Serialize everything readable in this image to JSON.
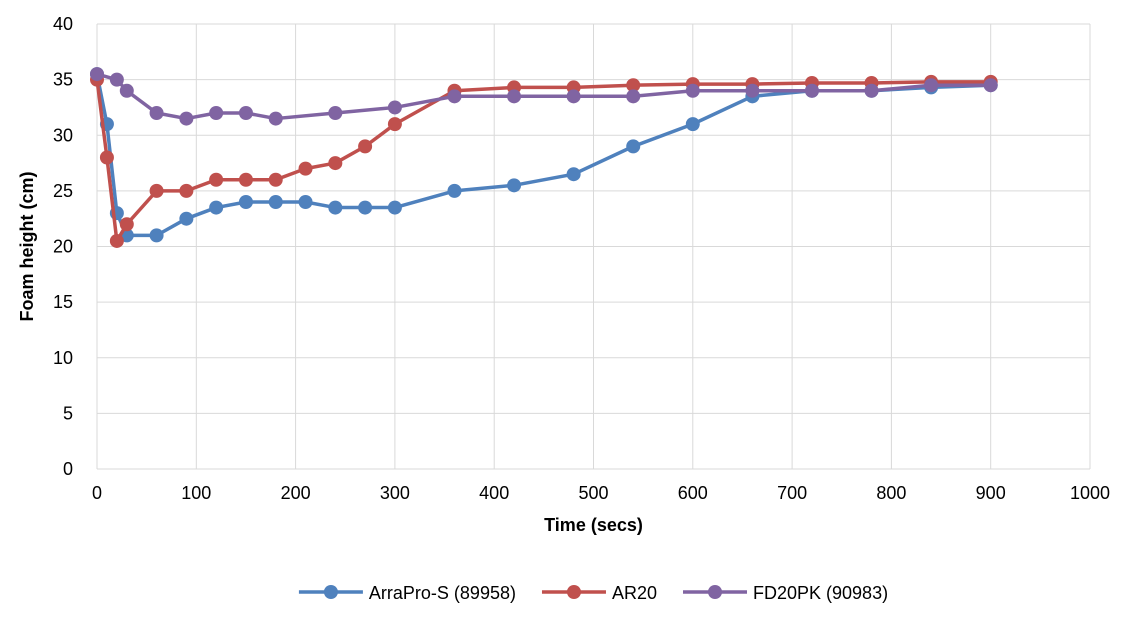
{
  "chart_data": {
    "type": "line",
    "title": "",
    "xlabel": "Time (secs)",
    "ylabel": "Foam height (cm)",
    "xlim": [
      0,
      1000
    ],
    "ylim": [
      0,
      40
    ],
    "x_ticks": [
      0,
      100,
      200,
      300,
      400,
      500,
      600,
      700,
      800,
      900,
      1000
    ],
    "y_ticks": [
      0,
      5,
      10,
      15,
      20,
      25,
      30,
      35,
      40
    ],
    "grid": true,
    "legend_position": "bottom",
    "series": [
      {
        "name": "ArraPro-S (89958)",
        "color": "#4f81bd",
        "x": [
          0,
          10,
          20,
          30,
          60,
          90,
          120,
          150,
          180,
          210,
          240,
          270,
          300,
          360,
          420,
          480,
          540,
          600,
          660,
          720,
          780,
          840,
          900
        ],
        "y": [
          35.5,
          31,
          23,
          21,
          21,
          22.5,
          23.5,
          24,
          24,
          24,
          23.5,
          23.5,
          23.5,
          25,
          25.5,
          26.5,
          29,
          31,
          33.5,
          34,
          34,
          34.3,
          34.5
        ]
      },
      {
        "name": "AR20",
        "color": "#c0504d",
        "x": [
          0,
          10,
          20,
          30,
          60,
          90,
          120,
          150,
          180,
          210,
          240,
          270,
          300,
          360,
          420,
          480,
          540,
          600,
          660,
          720,
          780,
          840,
          900
        ],
        "y": [
          35,
          28,
          20.5,
          22,
          25,
          25,
          26,
          26,
          26,
          27,
          27.5,
          29,
          31,
          34,
          34.3,
          34.3,
          34.5,
          34.6,
          34.6,
          34.7,
          34.7,
          34.8,
          34.8
        ]
      },
      {
        "name": "FD20PK (90983)",
        "color": "#8064a2",
        "x": [
          0,
          20,
          30,
          60,
          90,
          120,
          150,
          180,
          240,
          300,
          360,
          420,
          480,
          540,
          600,
          660,
          720,
          780,
          840,
          900
        ],
        "y": [
          35.5,
          35,
          34,
          32,
          31.5,
          32,
          32,
          31.5,
          32,
          32.5,
          33.5,
          33.5,
          33.5,
          33.5,
          34,
          34,
          34,
          34,
          34.5,
          34.5
        ]
      }
    ]
  }
}
